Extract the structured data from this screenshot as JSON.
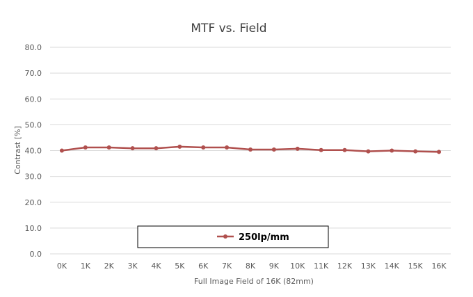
{
  "chart_data": {
    "type": "line",
    "title": "MTF vs. Field",
    "xlabel": "Full Image Field of 16K (82mm)",
    "ylabel": "Contrast [%]",
    "ylim": [
      0,
      80
    ],
    "yticks": [
      "0.0",
      "10.0",
      "20.0",
      "30.0",
      "40.0",
      "50.0",
      "60.0",
      "70.0",
      "80.0"
    ],
    "categories": [
      "0K",
      "1K",
      "2K",
      "3K",
      "4K",
      "5K",
      "6K",
      "7K",
      "8K",
      "9K",
      "10K",
      "11K",
      "12K",
      "13K",
      "14K",
      "15K",
      "16K"
    ],
    "grid": true,
    "legend_position": "bottom-center, boxed, inside plot",
    "series": [
      {
        "name": "250lp/mm",
        "color": "#b0504e",
        "marker": "circle",
        "values": [
          40.0,
          41.2,
          41.2,
          40.9,
          40.9,
          41.5,
          41.2,
          41.2,
          40.4,
          40.4,
          40.7,
          40.2,
          40.2,
          39.7,
          40.0,
          39.7,
          39.5
        ]
      }
    ]
  }
}
